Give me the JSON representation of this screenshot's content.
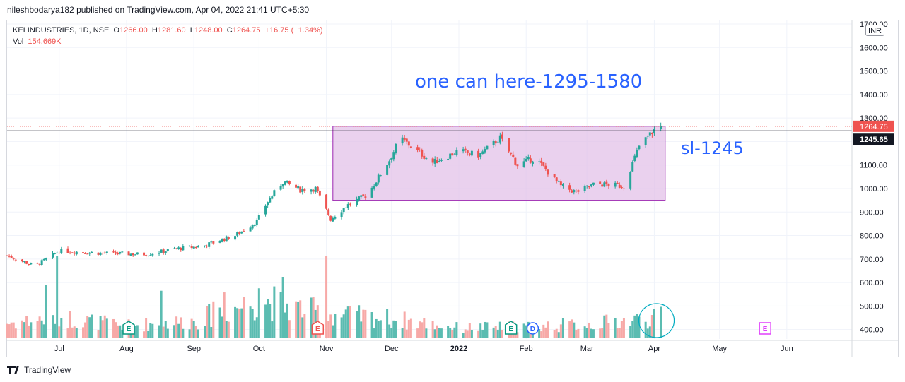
{
  "header": {
    "published_by": "nileshbodarya182 published on TradingView.com, Apr 04, 2022 21:41 UTC+5:30"
  },
  "legend": {
    "symbol": "KEI INDUSTRIES, 1D, NSE",
    "open_label": "O",
    "open": "1266.00",
    "high_label": "H",
    "high": "1281.60",
    "low_label": "L",
    "low": "1248.00",
    "close_label": "C",
    "close": "1264.75",
    "change": "+16.75 (+1.34%)",
    "volume_label": "Vol",
    "volume": "154.669K"
  },
  "currency": "INR",
  "annotations": {
    "target": "one can here-1295-1580",
    "stop_loss": "sl-1245"
  },
  "footer": {
    "brand": "TradingView"
  },
  "colors": {
    "up": "#26a69a",
    "down": "#ef5350",
    "up_volume": "#5bbcb1",
    "down_volume": "#f7a9a7",
    "box_fill": "#e1bee7",
    "box_stroke": "#9c27b0",
    "annotation": "#2962ff",
    "earnings": "#089981",
    "dividend": "#2962ff",
    "future_earnings": "#e040fb"
  },
  "chart_data": {
    "type": "candlestick",
    "y_axis": {
      "min": 360,
      "max": 1715,
      "ticks": [
        400,
        500,
        600,
        700,
        800,
        900,
        1000,
        1100,
        1200,
        1300,
        1400,
        1500,
        1600,
        1700
      ],
      "tick_labels": [
        "400.00",
        "500.00",
        "600.00",
        "700.00",
        "800.00",
        "900.00",
        "1000.00",
        "1100.00",
        "1200.00",
        "1300.00",
        "1400.00",
        "1500.00",
        "1600.00",
        "1700.00"
      ]
    },
    "x_axis": {
      "start": "2021-06-07",
      "end": "2022-07-01",
      "ticks": [
        {
          "date": "2021-07-01",
          "label": "Jul"
        },
        {
          "date": "2021-08-01",
          "label": "Aug"
        },
        {
          "date": "2021-09-01",
          "label": "Sep"
        },
        {
          "date": "2021-10-01",
          "label": "Oct"
        },
        {
          "date": "2021-11-01",
          "label": "Nov"
        },
        {
          "date": "2021-12-01",
          "label": "Dec"
        },
        {
          "date": "2022-01-01",
          "label": "2022"
        },
        {
          "date": "2022-02-01",
          "label": "Feb"
        },
        {
          "date": "2022-03-01",
          "label": "Mar"
        },
        {
          "date": "2022-04-01",
          "label": "Apr"
        },
        {
          "date": "2022-05-01",
          "label": "May"
        },
        {
          "date": "2022-06-01",
          "label": "Jun"
        }
      ]
    },
    "price_path": [
      [
        "2021-06-07",
        715
      ],
      [
        "2021-06-20",
        670
      ],
      [
        "2021-07-01",
        735
      ],
      [
        "2021-07-20",
        725
      ],
      [
        "2021-08-10",
        720
      ],
      [
        "2021-08-25",
        745
      ],
      [
        "2021-09-05",
        755
      ],
      [
        "2021-09-20",
        800
      ],
      [
        "2021-09-30",
        860
      ],
      [
        "2021-10-05",
        945
      ],
      [
        "2021-10-12",
        1030
      ],
      [
        "2021-10-20",
        995
      ],
      [
        "2021-10-27",
        1000
      ],
      [
        "2021-11-03",
        870
      ],
      [
        "2021-11-10",
        925
      ],
      [
        "2021-11-20",
        975
      ],
      [
        "2021-11-30",
        1120
      ],
      [
        "2021-12-05",
        1215
      ],
      [
        "2021-12-20",
        1110
      ],
      [
        "2022-01-01",
        1160
      ],
      [
        "2022-01-10",
        1140
      ],
      [
        "2022-01-20",
        1215
      ],
      [
        "2022-01-28",
        1100
      ],
      [
        "2022-02-05",
        1130
      ],
      [
        "2022-02-17",
        1010
      ],
      [
        "2022-02-24",
        985
      ],
      [
        "2022-03-05",
        1020
      ],
      [
        "2022-03-18",
        1010
      ],
      [
        "2022-03-25",
        1180
      ],
      [
        "2022-04-01",
        1250
      ],
      [
        "2022-04-04",
        1264.75
      ]
    ],
    "volume_path": [
      [
        "2021-06-07",
        0.22
      ],
      [
        "2021-07-01",
        0.3
      ],
      [
        "2021-08-01",
        0.18
      ],
      [
        "2021-09-01",
        0.25
      ],
      [
        "2021-10-01",
        0.55
      ],
      [
        "2021-11-01",
        0.35
      ],
      [
        "2021-12-01",
        0.28
      ],
      [
        "2022-01-01",
        0.15
      ],
      [
        "2022-02-01",
        0.17
      ],
      [
        "2022-03-01",
        0.2
      ],
      [
        "2022-04-04",
        0.3
      ]
    ],
    "volume_spikes": [
      [
        "2021-06-25",
        0.65
      ],
      [
        "2021-06-30",
        1.0
      ],
      [
        "2021-07-04",
        0.4
      ],
      [
        "2021-08-17",
        0.58
      ],
      [
        "2021-09-10",
        0.45
      ],
      [
        "2021-09-15",
        0.56
      ],
      [
        "2021-09-25",
        1.0
      ],
      [
        "2021-10-01",
        0.61
      ],
      [
        "2021-10-09",
        0.6
      ],
      [
        "2021-10-12",
        0.75
      ],
      [
        "2021-10-31",
        0.35
      ],
      [
        "2021-11-01",
        1.0
      ],
      [
        "2021-11-05",
        0.3
      ],
      [
        "2021-11-10",
        0.35
      ],
      [
        "2021-12-12",
        0.42
      ],
      [
        "2022-04-02",
        0.85
      ]
    ],
    "rectangle": {
      "x0": "2021-11-04",
      "x1": "2022-04-06",
      "y0": 950,
      "y1": 1265
    },
    "last_price": {
      "value": 1264.75,
      "label": "1264.75"
    },
    "level": {
      "value": 1245.65,
      "label": "1245.65"
    },
    "events": [
      {
        "date": "2021-08-02",
        "type": "earnings",
        "label": "E"
      },
      {
        "date": "2021-10-28",
        "type": "earnings",
        "label": "E"
      },
      {
        "date": "2022-01-25",
        "type": "earnings",
        "label": "E"
      },
      {
        "date": "2022-02-04",
        "type": "dividend",
        "label": "D"
      },
      {
        "date": "2022-05-22",
        "type": "future_earnings",
        "label": "E"
      }
    ],
    "highlight_ellipse": {
      "date": "2022-04-02",
      "y": 460
    },
    "grid": true
  }
}
